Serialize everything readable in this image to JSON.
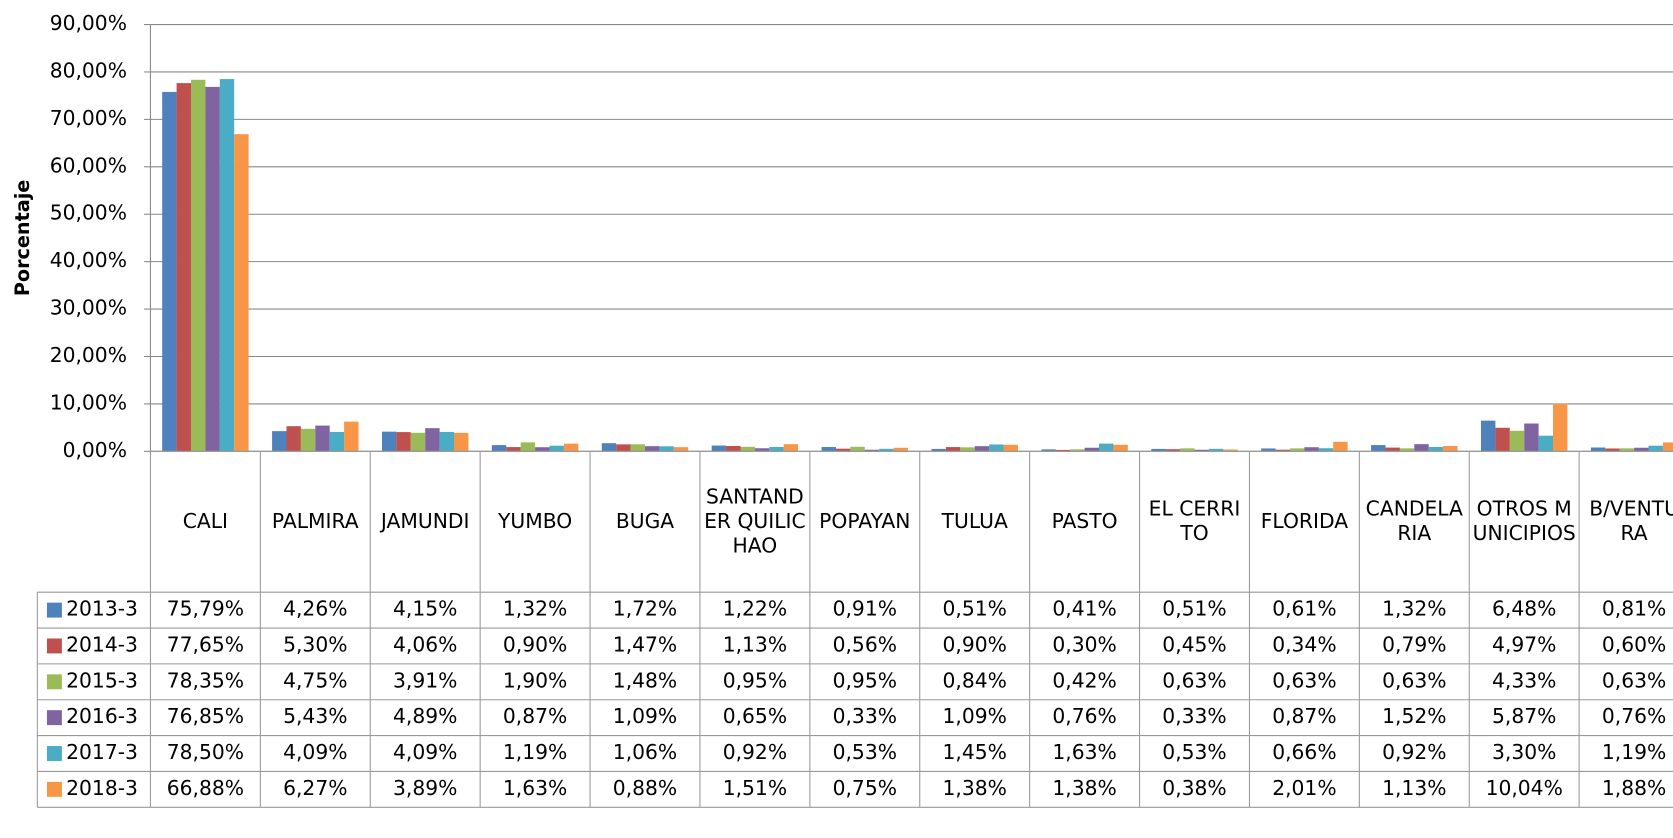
{
  "chart_data": {
    "type": "bar",
    "y_label": "Porcentaje",
    "categories": [
      "CALI",
      "PALMIRA",
      "JAMUNDI",
      "YUMBO",
      "BUGA",
      "SANTANDER QUILICHAO",
      "POPAYAN",
      "TULUA",
      "PASTO",
      "EL CERRITO",
      "FLORIDA",
      "CANDELARIA",
      "OTROS MUNICIPIOS",
      "B/VENTURA"
    ],
    "ylim": [
      0,
      90
    ],
    "yticks": [
      {
        "value": 0,
        "label": "0,00%"
      },
      {
        "value": 10,
        "label": "10,00%"
      },
      {
        "value": 20,
        "label": "20,00%"
      },
      {
        "value": 30,
        "label": "30,00%"
      },
      {
        "value": 40,
        "label": "40,00%"
      },
      {
        "value": 50,
        "label": "50,00%"
      },
      {
        "value": 60,
        "label": "60,00%"
      },
      {
        "value": 70,
        "label": "70,00%"
      },
      {
        "value": 80,
        "label": "80,00%"
      },
      {
        "value": 90,
        "label": "90,00%"
      }
    ],
    "grid": true,
    "series": [
      {
        "name": "2013-3",
        "color": "#4f81bd",
        "values": [
          75.79,
          4.26,
          4.15,
          1.32,
          1.72,
          1.22,
          0.91,
          0.51,
          0.41,
          0.51,
          0.61,
          1.32,
          6.48,
          0.81
        ],
        "value_labels": [
          "75,79%",
          "4,26%",
          "4,15%",
          "1,32%",
          "1,72%",
          "1,22%",
          "0,91%",
          "0,51%",
          "0,41%",
          "0,51%",
          "0,61%",
          "1,32%",
          "6,48%",
          "0,81%"
        ]
      },
      {
        "name": "2014-3",
        "color": "#c0504d",
        "values": [
          77.65,
          5.3,
          4.06,
          0.9,
          1.47,
          1.13,
          0.56,
          0.9,
          0.3,
          0.45,
          0.34,
          0.79,
          4.97,
          0.6
        ],
        "value_labels": [
          "77,65%",
          "5,30%",
          "4,06%",
          "0,90%",
          "1,47%",
          "1,13%",
          "0,56%",
          "0,90%",
          "0,30%",
          "0,45%",
          "0,34%",
          "0,79%",
          "4,97%",
          "0,60%"
        ]
      },
      {
        "name": "2015-3",
        "color": "#9bbb59",
        "values": [
          78.35,
          4.75,
          3.91,
          1.9,
          1.48,
          0.95,
          0.95,
          0.84,
          0.42,
          0.63,
          0.63,
          0.63,
          4.33,
          0.63
        ],
        "value_labels": [
          "78,35%",
          "4,75%",
          "3,91%",
          "1,90%",
          "1,48%",
          "0,95%",
          "0,95%",
          "0,84%",
          "0,42%",
          "0,63%",
          "0,63%",
          "0,63%",
          "4,33%",
          "0,63%"
        ]
      },
      {
        "name": "2016-3",
        "color": "#8064a2",
        "values": [
          76.85,
          5.43,
          4.89,
          0.87,
          1.09,
          0.65,
          0.33,
          1.09,
          0.76,
          0.33,
          0.87,
          1.52,
          5.87,
          0.76
        ],
        "value_labels": [
          "76,85%",
          "5,43%",
          "4,89%",
          "0,87%",
          "1,09%",
          "0,65%",
          "0,33%",
          "1,09%",
          "0,76%",
          "0,33%",
          "0,87%",
          "1,52%",
          "5,87%",
          "0,76%"
        ]
      },
      {
        "name": "2017-3",
        "color": "#4bacc6",
        "values": [
          78.5,
          4.09,
          4.09,
          1.19,
          1.06,
          0.92,
          0.53,
          1.45,
          1.63,
          0.53,
          0.66,
          0.92,
          3.3,
          1.19
        ],
        "value_labels": [
          "78,50%",
          "4,09%",
          "4,09%",
          "1,19%",
          "1,06%",
          "0,92%",
          "0,53%",
          "1,45%",
          "1,63%",
          "0,53%",
          "0,66%",
          "0,92%",
          "3,30%",
          "1,19%"
        ]
      },
      {
        "name": "2018-3",
        "color": "#f79646",
        "values": [
          66.88,
          6.27,
          3.89,
          1.63,
          0.88,
          1.51,
          0.75,
          1.38,
          1.38,
          0.38,
          2.01,
          1.13,
          10.04,
          1.88
        ],
        "value_labels": [
          "66,88%",
          "6,27%",
          "3,89%",
          "1,63%",
          "0,88%",
          "1,51%",
          "0,75%",
          "1,38%",
          "1,38%",
          "0,38%",
          "2,01%",
          "1,13%",
          "10,04%",
          "1,88%"
        ]
      }
    ]
  }
}
